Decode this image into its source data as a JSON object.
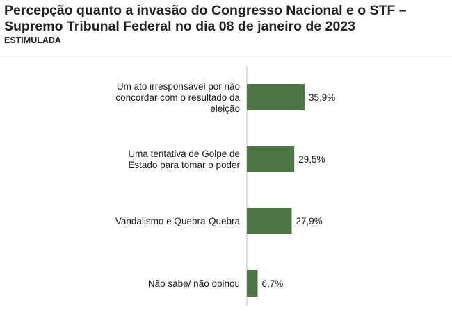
{
  "header": {
    "title": "Percepção quanto a invasão do Congresso Nacional e o STF – Supremo Tribunal Federal no dia 08 de janeiro de 2023",
    "subtitle": "ESTIMULADA"
  },
  "chart_data": {
    "type": "bar",
    "orientation": "horizontal",
    "title": "Percepção quanto a invasão do Congresso Nacional e o STF – Supremo Tribunal Federal no dia 08 de janeiro de 2023",
    "subtitle": "ESTIMULADA",
    "categories": [
      [
        "Um ato irresponsável por não",
        "concordar com o resultado da",
        "eleição"
      ],
      [
        "Uma tentativa de Golpe de",
        "Estado para tomar o poder"
      ],
      [
        "Vandalismo e Quebra-Quebra"
      ],
      [
        "Não sabe/ não opinou"
      ]
    ],
    "values": [
      35.9,
      29.5,
      27.9,
      6.7
    ],
    "value_labels": [
      "35,9%",
      "29,5%",
      "27,9%",
      "6,7%"
    ],
    "bar_color": "#4e7446",
    "xlim": [
      0,
      100
    ],
    "grid": false,
    "legend": "none"
  }
}
